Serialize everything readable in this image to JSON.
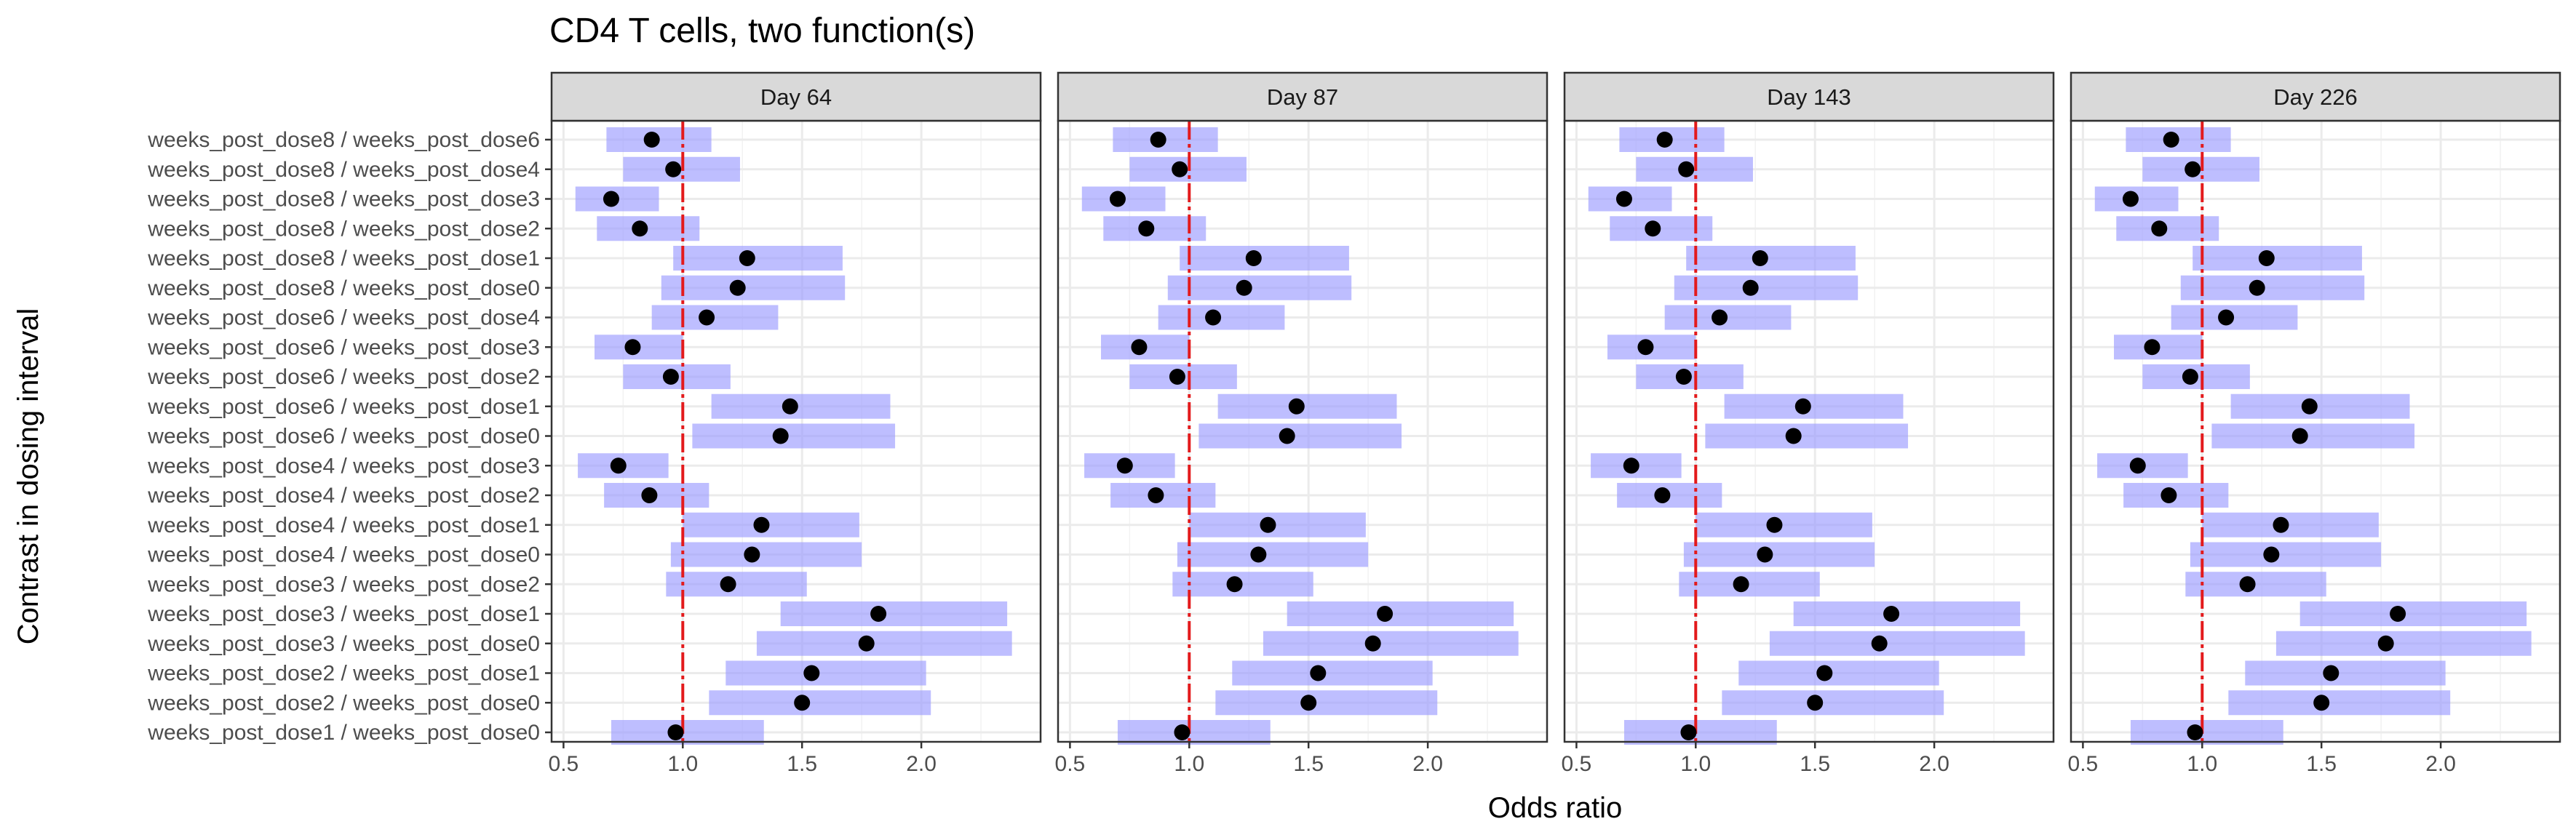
{
  "chart_data": {
    "type": "forest",
    "title": "CD4 T cells, two function(s)",
    "xlabel": "Odds ratio",
    "ylabel": "Contrast in dosing interval",
    "xlim": [
      0.45,
      2.5
    ],
    "xticks": [
      0.5,
      1.0,
      1.5,
      2.0
    ],
    "xtick_labels": [
      "0.5",
      "1.0",
      "1.5",
      "2.0"
    ],
    "reference_line": 1.0,
    "grid": true,
    "colors": {
      "interval": "#9b9bff",
      "point": "#000000",
      "reference": "#e31a1c",
      "strip": "#d9d9d9"
    },
    "panels": [
      "Day 64",
      "Day 87",
      "Day 143",
      "Day 226"
    ],
    "contrasts": [
      "weeks_post_dose8 / weeks_post_dose6",
      "weeks_post_dose8 / weeks_post_dose4",
      "weeks_post_dose8 / weeks_post_dose3",
      "weeks_post_dose8 / weeks_post_dose2",
      "weeks_post_dose8 / weeks_post_dose1",
      "weeks_post_dose8 / weeks_post_dose0",
      "weeks_post_dose6 / weeks_post_dose4",
      "weeks_post_dose6 / weeks_post_dose3",
      "weeks_post_dose6 / weeks_post_dose2",
      "weeks_post_dose6 / weeks_post_dose1",
      "weeks_post_dose6 / weeks_post_dose0",
      "weeks_post_dose4 / weeks_post_dose3",
      "weeks_post_dose4 / weeks_post_dose2",
      "weeks_post_dose4 / weeks_post_dose1",
      "weeks_post_dose4 / weeks_post_dose0",
      "weeks_post_dose3 / weeks_post_dose2",
      "weeks_post_dose3 / weeks_post_dose1",
      "weeks_post_dose3 / weeks_post_dose0",
      "weeks_post_dose2 / weeks_post_dose1",
      "weeks_post_dose2 / weeks_post_dose0",
      "weeks_post_dose1 / weeks_post_dose0"
    ],
    "estimates": [
      0.87,
      0.96,
      0.7,
      0.82,
      1.27,
      1.23,
      1.1,
      0.79,
      0.95,
      1.45,
      1.41,
      0.73,
      0.86,
      1.33,
      1.29,
      1.19,
      1.82,
      1.77,
      1.54,
      1.5,
      0.97
    ],
    "lower": [
      0.68,
      0.75,
      0.55,
      0.64,
      0.96,
      0.91,
      0.87,
      0.63,
      0.75,
      1.12,
      1.04,
      0.56,
      0.67,
      1.0,
      0.95,
      0.93,
      1.41,
      1.31,
      1.18,
      1.11,
      0.7
    ],
    "upper": [
      1.12,
      1.24,
      0.9,
      1.07,
      1.67,
      1.68,
      1.4,
      1.0,
      1.2,
      1.87,
      1.89,
      0.94,
      1.11,
      1.74,
      1.75,
      1.52,
      2.36,
      2.38,
      2.02,
      2.04,
      1.34
    ]
  }
}
